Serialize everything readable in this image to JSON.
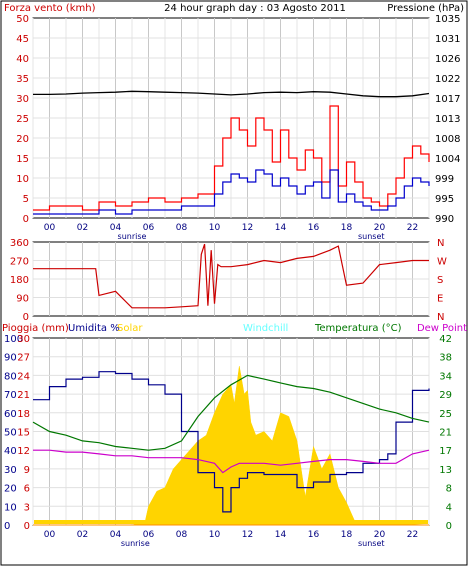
{
  "chart_data": [
    {
      "type": "line",
      "header": {
        "left_label": "Forza vento (kmh)",
        "title": "24 hour graph day : 03 Agosto 2011",
        "right_label": "Pressione (hPa)"
      },
      "x_ticks": [
        "00",
        "02",
        "04",
        "06",
        "08",
        "10",
        "12",
        "14",
        "16",
        "18",
        "20",
        "22"
      ],
      "sunrise_label": "sunrise",
      "sunset_label": "sunset",
      "sunrise_hour": 6.0,
      "sunset_hour": 20.5,
      "ylim": [
        0,
        50
      ],
      "y_ticks": [
        0,
        5,
        10,
        15,
        20,
        25,
        30,
        35,
        40,
        45,
        50
      ],
      "y2lim": [
        990,
        1034.5
      ],
      "y2_ticks": [
        990,
        995,
        999,
        1004,
        1008,
        1013,
        1017,
        1022,
        1026,
        1031,
        1035
      ],
      "series": [
        {
          "color": "#ff0000",
          "x": [
            0,
            1,
            2,
            3,
            4,
            5,
            6,
            7,
            8,
            9,
            10,
            11,
            11.5,
            12,
            12.5,
            13,
            13.5,
            14,
            14.5,
            15,
            15.5,
            16,
            16.5,
            17,
            17.5,
            18,
            18.5,
            19,
            19.5,
            20,
            20.5,
            21,
            21.5,
            22,
            22.5,
            23,
            23.5,
            24
          ],
          "values": [
            2,
            3,
            3,
            2,
            4,
            3,
            4,
            5,
            4,
            5,
            6,
            13,
            20,
            25,
            22,
            18,
            25,
            22,
            14,
            22,
            15,
            12,
            17,
            15,
            9,
            28,
            8,
            14,
            9,
            5,
            4,
            3,
            6,
            10,
            15,
            18,
            16,
            14
          ]
        },
        {
          "color": "#0000cc",
          "x": [
            0,
            1,
            2,
            3,
            4,
            5,
            6,
            7,
            8,
            9,
            10,
            11,
            11.5,
            12,
            12.5,
            13,
            13.5,
            14,
            14.5,
            15,
            15.5,
            16,
            16.5,
            17,
            17.5,
            18,
            18.5,
            19,
            19.5,
            20,
            20.5,
            21,
            21.5,
            22,
            22.5,
            23,
            23.5,
            24
          ],
          "values": [
            1,
            1,
            1,
            1,
            2,
            1,
            2,
            2,
            2,
            3,
            3,
            6,
            9,
            11,
            10,
            9,
            12,
            11,
            8,
            10,
            8,
            6,
            8,
            9,
            5,
            12,
            4,
            6,
            4,
            3,
            2,
            2,
            3,
            5,
            8,
            10,
            9,
            8
          ]
        },
        {
          "color": "#000000",
          "axis": "right",
          "x": [
            0,
            1,
            2,
            3,
            4,
            5,
            6,
            7,
            8,
            9,
            10,
            11,
            12,
            13,
            14,
            15,
            16,
            17,
            18,
            19,
            20,
            21,
            22,
            23,
            24
          ],
          "values": [
            1017.5,
            1017.5,
            1017.6,
            1017.8,
            1017.9,
            1018.0,
            1018.2,
            1018.1,
            1018.0,
            1017.9,
            1017.8,
            1017.6,
            1017.4,
            1017.6,
            1017.9,
            1018.0,
            1017.9,
            1018.1,
            1018.0,
            1017.6,
            1017.2,
            1017.0,
            1017.0,
            1017.2,
            1017.7
          ]
        }
      ]
    },
    {
      "type": "line",
      "ylim": [
        0,
        360
      ],
      "y_ticks": [
        0,
        90,
        180,
        270,
        360
      ],
      "y2_ticks": [
        "N",
        "E",
        "S",
        "W",
        "N"
      ],
      "series": [
        {
          "color": "#cc0000",
          "x": [
            0,
            1,
            2,
            3,
            3.8,
            4,
            5,
            6,
            7,
            8,
            9,
            10,
            10.2,
            10.4,
            10.6,
            10.8,
            11,
            11.2,
            11.4,
            12,
            13,
            14,
            15,
            16,
            17,
            18,
            18.5,
            19,
            20,
            21,
            22,
            23,
            24
          ],
          "values": [
            230,
            230,
            230,
            230,
            230,
            100,
            120,
            40,
            40,
            40,
            45,
            50,
            300,
            350,
            50,
            320,
            60,
            250,
            240,
            240,
            250,
            270,
            260,
            280,
            290,
            320,
            340,
            150,
            160,
            250,
            260,
            270,
            270
          ]
        }
      ]
    },
    {
      "type": "area",
      "header": {
        "rain_label": "Pioggia (mm)",
        "humidity_label": "Umidita %",
        "solar_label": "Solar",
        "windchill_label": "Windchill",
        "temperature_label": "Temperatura (°C)",
        "dewpoint_label": "Dew Point"
      },
      "x_ticks": [
        "00",
        "02",
        "04",
        "06",
        "08",
        "10",
        "12",
        "14",
        "16",
        "18",
        "20",
        "22"
      ],
      "sunrise_label": "sunrise",
      "sunset_label": "sunset",
      "ylim": [
        0,
        100
      ],
      "y_ticks_humidity": [
        0,
        10,
        20,
        30,
        40,
        50,
        60,
        70,
        80,
        90,
        100
      ],
      "y_ticks_rain": [
        0,
        3,
        6,
        9,
        12,
        15,
        18,
        21,
        24,
        27,
        30
      ],
      "y2lim": [
        0,
        42
      ],
      "y2_ticks": [
        0,
        4,
        8,
        13,
        17,
        21,
        25,
        29,
        34,
        38,
        42
      ],
      "series": [
        {
          "name": "Umidita %",
          "color": "#00008b",
          "x": [
            0,
            1,
            2,
            3,
            4,
            5,
            6,
            7,
            8,
            9,
            10,
            11,
            11.5,
            12,
            12.5,
            13,
            14,
            15,
            16,
            17,
            18,
            19,
            20,
            21,
            21.5,
            22,
            23,
            24
          ],
          "values": [
            67,
            74,
            78,
            79,
            82,
            81,
            78,
            75,
            70,
            50,
            28,
            20,
            7,
            20,
            25,
            28,
            27,
            27,
            20,
            23,
            27,
            28,
            33,
            35,
            38,
            55,
            72,
            73
          ]
        },
        {
          "name": "Temperatura (°C)",
          "color": "#007700",
          "x": [
            0,
            1,
            2,
            3,
            4,
            5,
            6,
            7,
            8,
            9,
            10,
            11,
            12,
            13,
            14,
            15,
            16,
            17,
            18,
            19,
            20,
            21,
            22,
            23,
            24
          ],
          "values": [
            55,
            50,
            48,
            45,
            44,
            42,
            41,
            40,
            41,
            45,
            58,
            68,
            75,
            80,
            78,
            76,
            74,
            73,
            71,
            68,
            65,
            62,
            60,
            57,
            55
          ]
        },
        {
          "name": "Dew Point",
          "color": "#cc00cc",
          "x": [
            0,
            1,
            2,
            3,
            4,
            5,
            6,
            7,
            8,
            9,
            10,
            11,
            11.5,
            12,
            12.5,
            13,
            14,
            15,
            16,
            17,
            18,
            19,
            20,
            21,
            22,
            23,
            24
          ],
          "values": [
            40,
            40,
            39,
            39,
            38,
            37,
            37,
            36,
            36,
            36,
            35,
            33,
            28,
            31,
            33,
            33,
            33,
            32,
            33,
            34,
            35,
            35,
            34,
            33,
            33,
            38,
            40
          ]
        },
        {
          "name": "Solar",
          "color": "#ffd400",
          "x": [
            0,
            6,
            6.8,
            7,
            7.5,
            8,
            8.5,
            9,
            9.5,
            10,
            10.5,
            11,
            11.5,
            12,
            12.2,
            12.5,
            12.8,
            13,
            13.2,
            13.5,
            14,
            14.5,
            15,
            15.5,
            16,
            16.5,
            17,
            17.5,
            18,
            18.5,
            19,
            19.5,
            24
          ],
          "values": [
            0,
            0,
            2,
            10,
            18,
            20,
            30,
            35,
            40,
            45,
            48,
            60,
            70,
            75,
            65,
            85,
            70,
            72,
            55,
            48,
            50,
            45,
            60,
            58,
            45,
            15,
            42,
            30,
            38,
            20,
            12,
            2,
            0
          ]
        },
        {
          "name": "Pioggia (mm)",
          "color": "#ff8c00",
          "x": [
            0,
            24
          ],
          "values": [
            0,
            0
          ]
        }
      ]
    }
  ]
}
